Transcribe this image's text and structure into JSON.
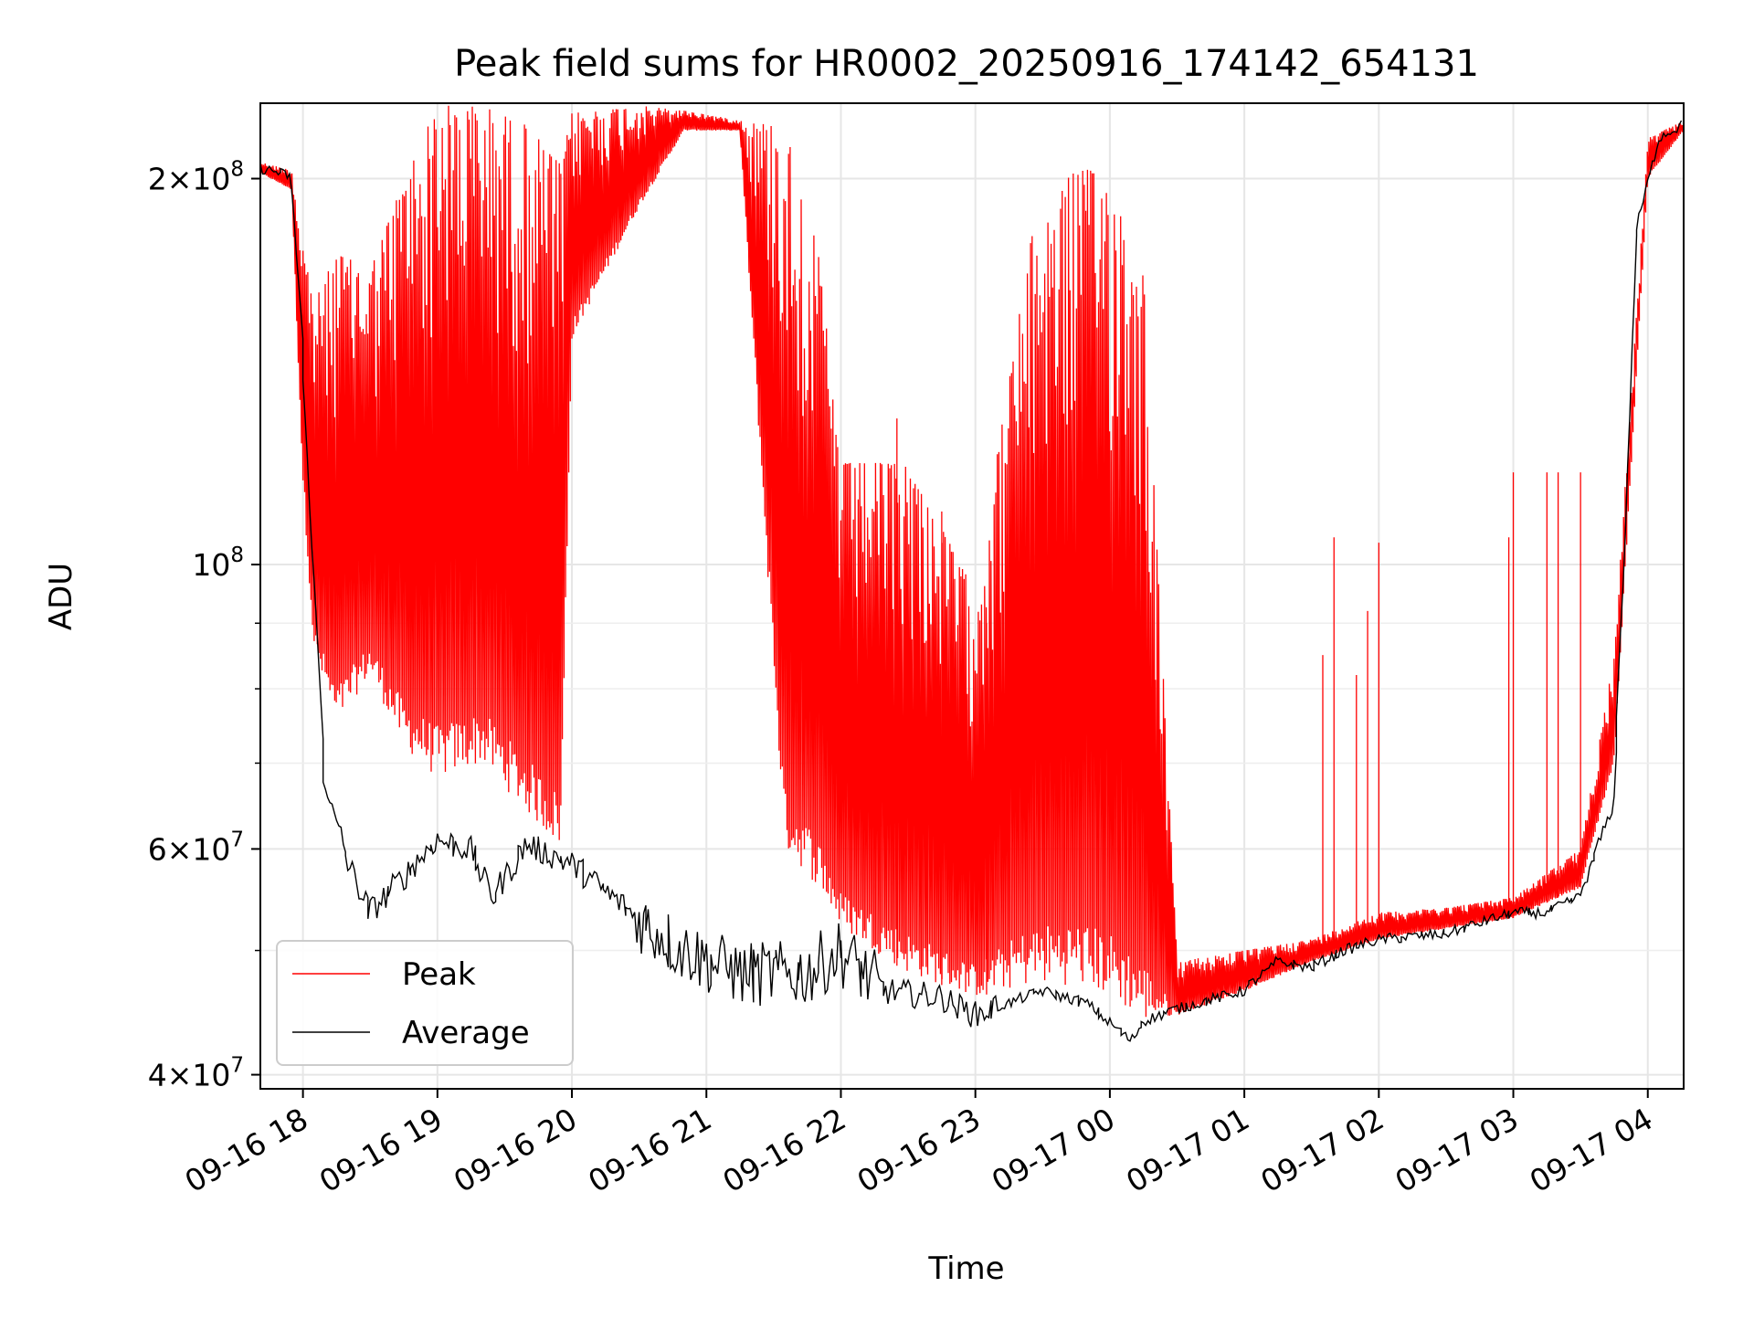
{
  "chart_data": {
    "type": "line",
    "title": "Peak field sums for HR0002_20250916_174142_654131",
    "xlabel": "Time",
    "ylabel": "ADU",
    "y_scale": "log",
    "ylim": [
      39000000,
      229000000
    ],
    "xlim": [
      "2025-09-16 17:41",
      "2025-09-17 04:16"
    ],
    "grid": true,
    "legend_position": "lower-left",
    "x_ticks": [
      {
        "t": "2025-09-16 18:00",
        "label": "09-16 18"
      },
      {
        "t": "2025-09-16 19:00",
        "label": "09-16 19"
      },
      {
        "t": "2025-09-16 20:00",
        "label": "09-16 20"
      },
      {
        "t": "2025-09-16 21:00",
        "label": "09-16 21"
      },
      {
        "t": "2025-09-16 22:00",
        "label": "09-16 22"
      },
      {
        "t": "2025-09-16 23:00",
        "label": "09-16 23"
      },
      {
        "t": "2025-09-17 00:00",
        "label": "09-17 00"
      },
      {
        "t": "2025-09-17 01:00",
        "label": "09-17 01"
      },
      {
        "t": "2025-09-17 02:00",
        "label": "09-17 02"
      },
      {
        "t": "2025-09-17 03:00",
        "label": "09-17 03"
      },
      {
        "t": "2025-09-17 04:00",
        "label": "09-17 04"
      }
    ],
    "y_major_ticks": [
      {
        "value": 40000000,
        "base": "4×10",
        "exp": "7"
      },
      {
        "value": 60000000,
        "base": "6×10",
        "exp": "7"
      },
      {
        "value": 100000000,
        "base": "10",
        "exp": "8"
      },
      {
        "value": 200000000,
        "base": "2×10",
        "exp": "8"
      }
    ],
    "y_minor_ticks": [
      50000000,
      70000000,
      80000000,
      90000000
    ],
    "series": [
      {
        "name": "Peak",
        "color": "#ff0000",
        "band_envelope": [
          {
            "t": "2025-09-16 17:41",
            "lo": 202000000,
            "hi": 206000000
          },
          {
            "t": "2025-09-16 17:55",
            "lo": 196000000,
            "hi": 203000000
          },
          {
            "t": "2025-09-16 18:00",
            "lo": 115000000,
            "hi": 180000000
          },
          {
            "t": "2025-09-16 18:05",
            "lo": 85000000,
            "hi": 160000000
          },
          {
            "t": "2025-09-16 18:15",
            "lo": 75000000,
            "hi": 175000000
          },
          {
            "t": "2025-09-16 18:30",
            "lo": 82000000,
            "hi": 170000000
          },
          {
            "t": "2025-09-16 18:45",
            "lo": 72000000,
            "hi": 200000000
          },
          {
            "t": "2025-09-16 19:00",
            "lo": 68000000,
            "hi": 228000000
          },
          {
            "t": "2025-09-16 19:20",
            "lo": 70000000,
            "hi": 228000000
          },
          {
            "t": "2025-09-16 19:40",
            "lo": 64000000,
            "hi": 220000000
          },
          {
            "t": "2025-09-16 19:55",
            "lo": 60000000,
            "hi": 205000000
          },
          {
            "t": "2025-09-16 20:00",
            "lo": 150000000,
            "hi": 225000000
          },
          {
            "t": "2025-09-16 20:30",
            "lo": 190000000,
            "hi": 228000000
          },
          {
            "t": "2025-09-16 20:50",
            "lo": 218000000,
            "hi": 226000000
          },
          {
            "t": "2025-09-16 21:15",
            "lo": 218000000,
            "hi": 222000000
          },
          {
            "t": "2025-09-16 21:35",
            "lo": 60000000,
            "hi": 220000000
          },
          {
            "t": "2025-09-16 21:50",
            "lo": 56000000,
            "hi": 175000000
          },
          {
            "t": "2025-09-16 22:00",
            "lo": 52000000,
            "hi": 120000000
          },
          {
            "t": "2025-09-16 22:30",
            "lo": 48000000,
            "hi": 120000000
          },
          {
            "t": "2025-09-16 23:00",
            "lo": 46000000,
            "hi": 95000000
          },
          {
            "t": "2025-09-16 23:25",
            "lo": 47000000,
            "hi": 180000000
          },
          {
            "t": "2025-09-16 23:45",
            "lo": 47000000,
            "hi": 205000000
          },
          {
            "t": "2025-09-17 00:00",
            "lo": 46000000,
            "hi": 200000000
          },
          {
            "t": "2025-09-17 00:15",
            "lo": 44000000,
            "hi": 170000000
          },
          {
            "t": "2025-09-17 00:30",
            "lo": 44500000,
            "hi": 49000000
          },
          {
            "t": "2025-09-17 01:00",
            "lo": 46500000,
            "hi": 50000000
          },
          {
            "t": "2025-09-17 01:30",
            "lo": 49000000,
            "hi": 51000000
          },
          {
            "t": "2025-09-17 02:00",
            "lo": 51000000,
            "hi": 53500000
          },
          {
            "t": "2025-09-17 02:30",
            "lo": 52000000,
            "hi": 54000000
          },
          {
            "t": "2025-09-17 03:00",
            "lo": 53000000,
            "hi": 55000000
          },
          {
            "t": "2025-09-17 03:30",
            "lo": 56000000,
            "hi": 60000000
          },
          {
            "t": "2025-09-17 03:45",
            "lo": 70000000,
            "hi": 85000000
          },
          {
            "t": "2025-09-17 04:00",
            "lo": 200000000,
            "hi": 215000000
          },
          {
            "t": "2025-09-17 04:16",
            "lo": 218000000,
            "hi": 222000000
          }
        ],
        "spikes": [
          {
            "t": "2025-09-16 22:25",
            "value": 130000000
          },
          {
            "t": "2025-09-16 22:45",
            "value": 110000000
          },
          {
            "t": "2025-09-16 23:05",
            "value": 90000000
          },
          {
            "t": "2025-09-17 01:35",
            "value": 85000000
          },
          {
            "t": "2025-09-17 01:40",
            "value": 105000000
          },
          {
            "t": "2025-09-17 01:50",
            "value": 82000000
          },
          {
            "t": "2025-09-17 01:55",
            "value": 92000000
          },
          {
            "t": "2025-09-17 02:00",
            "value": 104000000
          },
          {
            "t": "2025-09-17 02:58",
            "value": 105000000
          },
          {
            "t": "2025-09-17 03:00",
            "value": 118000000
          },
          {
            "t": "2025-09-17 03:15",
            "value": 118000000
          },
          {
            "t": "2025-09-17 03:20",
            "value": 118000000
          },
          {
            "t": "2025-09-17 03:30",
            "value": 118000000
          }
        ]
      },
      {
        "name": "Average",
        "color": "#000000",
        "points": [
          {
            "t": "2025-09-16 17:41",
            "value": 204000000
          },
          {
            "t": "2025-09-16 17:55",
            "value": 201000000
          },
          {
            "t": "2025-09-16 18:00",
            "value": 150000000
          },
          {
            "t": "2025-09-16 18:05",
            "value": 100000000
          },
          {
            "t": "2025-09-16 18:10",
            "value": 68000000
          },
          {
            "t": "2025-09-16 18:20",
            "value": 59000000
          },
          {
            "t": "2025-09-16 18:30",
            "value": 53500000
          },
          {
            "t": "2025-09-16 18:45",
            "value": 57000000
          },
          {
            "t": "2025-09-16 19:00",
            "value": 61000000
          },
          {
            "t": "2025-09-16 19:15",
            "value": 60000000
          },
          {
            "t": "2025-09-16 19:25",
            "value": 55000000
          },
          {
            "t": "2025-09-16 19:40",
            "value": 60500000
          },
          {
            "t": "2025-09-16 20:00",
            "value": 58500000
          },
          {
            "t": "2025-09-16 20:30",
            "value": 53000000
          },
          {
            "t": "2025-09-16 20:50",
            "value": 50000000
          },
          {
            "t": "2025-09-16 21:15",
            "value": 48000000
          },
          {
            "t": "2025-09-16 21:45",
            "value": 48000000
          },
          {
            "t": "2025-09-16 22:00",
            "value": 50000000
          },
          {
            "t": "2025-09-16 22:20",
            "value": 46500000
          },
          {
            "t": "2025-09-16 22:45",
            "value": 46000000
          },
          {
            "t": "2025-09-16 23:00",
            "value": 44500000
          },
          {
            "t": "2025-09-16 23:30",
            "value": 46500000
          },
          {
            "t": "2025-09-16 23:50",
            "value": 45500000
          },
          {
            "t": "2025-09-17 00:10",
            "value": 42500000
          },
          {
            "t": "2025-09-17 00:15",
            "value": 44000000
          },
          {
            "t": "2025-09-17 00:30",
            "value": 45000000
          },
          {
            "t": "2025-09-17 01:00",
            "value": 46500000
          },
          {
            "t": "2025-09-17 01:15",
            "value": 49000000
          },
          {
            "t": "2025-09-17 01:30",
            "value": 48500000
          },
          {
            "t": "2025-09-17 01:45",
            "value": 50000000
          },
          {
            "t": "2025-09-17 02:00",
            "value": 51000000
          },
          {
            "t": "2025-09-17 02:30",
            "value": 51500000
          },
          {
            "t": "2025-09-17 03:00",
            "value": 53500000
          },
          {
            "t": "2025-09-17 03:15",
            "value": 53500000
          },
          {
            "t": "2025-09-17 03:30",
            "value": 55000000
          },
          {
            "t": "2025-09-17 03:45",
            "value": 65000000
          },
          {
            "t": "2025-09-17 03:50",
            "value": 100000000
          },
          {
            "t": "2025-09-17 03:55",
            "value": 180000000
          },
          {
            "t": "2025-09-17 04:05",
            "value": 215000000
          },
          {
            "t": "2025-09-17 04:15",
            "value": 220000000
          }
        ]
      }
    ]
  }
}
